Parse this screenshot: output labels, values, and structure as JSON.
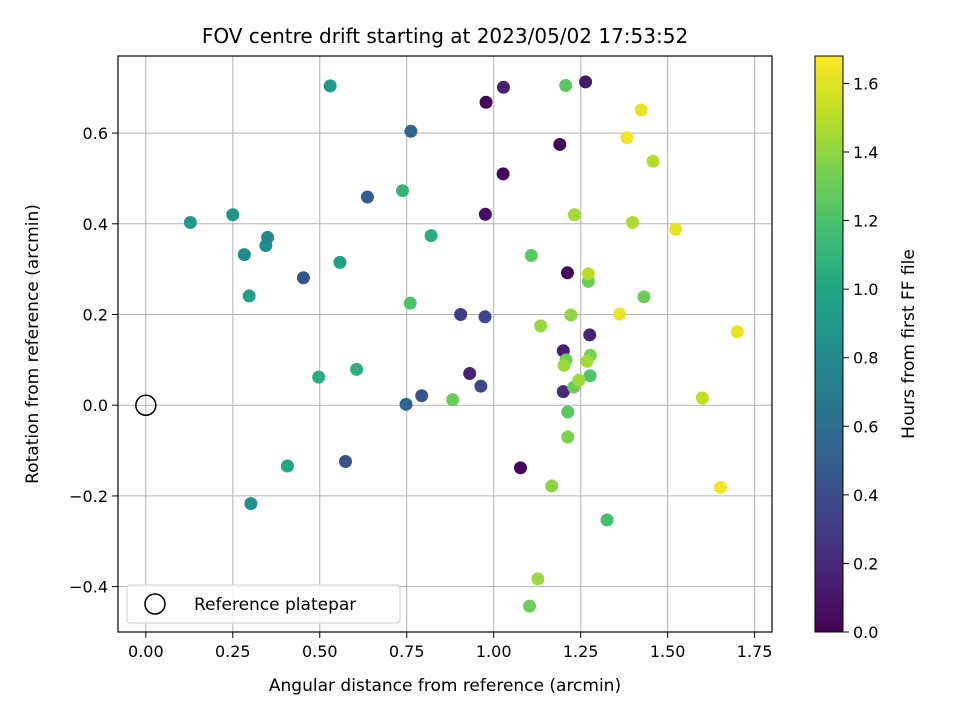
{
  "chart_data": {
    "type": "scatter",
    "title": "FOV centre drift starting at 2023/05/02 17:53:52",
    "xlabel": "Angular distance from reference (arcmin)",
    "ylabel": "Rotation from reference (arcmin)",
    "xlim": [
      -0.08,
      1.8
    ],
    "ylim": [
      -0.5,
      0.77
    ],
    "xticks": [
      0.0,
      0.25,
      0.5,
      0.75,
      1.0,
      1.25,
      1.5,
      1.75
    ],
    "xtick_labels": [
      "0.00",
      "0.25",
      "0.50",
      "0.75",
      "1.00",
      "1.25",
      "1.50",
      "1.75"
    ],
    "yticks": [
      -0.4,
      -0.2,
      0.0,
      0.2,
      0.4,
      0.6
    ],
    "ytick_labels": [
      "−0.4",
      "−0.2",
      "0.0",
      "0.2",
      "0.4",
      "0.6"
    ],
    "grid": true,
    "legend": {
      "placement": "lower-left",
      "entries": [
        {
          "label": "Reference platepar",
          "marker": "hollow-circle",
          "x": 0.0,
          "y": 0.0
        }
      ]
    },
    "colorbar": {
      "label": "Hours from first FF file",
      "range": [
        0.0,
        1.68
      ],
      "ticks": [
        0.0,
        0.2,
        0.4,
        0.6,
        0.8,
        1.0,
        1.2,
        1.4,
        1.6
      ],
      "tick_labels": [
        "0.0",
        "0.2",
        "0.4",
        "0.6",
        "0.8",
        "1.0",
        "1.2",
        "1.4",
        "1.6"
      ],
      "colormap": "viridis"
    },
    "points": [
      {
        "x": 0.978,
        "y": 0.668,
        "c": 0.02
      },
      {
        "x": 1.19,
        "y": 0.575,
        "c": 0.03
      },
      {
        "x": 0.976,
        "y": 0.421,
        "c": 0.05
      },
      {
        "x": 1.027,
        "y": 0.51,
        "c": 0.03
      },
      {
        "x": 1.212,
        "y": 0.292,
        "c": 0.04
      },
      {
        "x": 1.077,
        "y": -0.138,
        "c": 0.03
      },
      {
        "x": 1.264,
        "y": 0.713,
        "c": 0.12
      },
      {
        "x": 1.028,
        "y": 0.701,
        "c": 0.15
      },
      {
        "x": 1.276,
        "y": 0.155,
        "c": 0.18
      },
      {
        "x": 1.2,
        "y": 0.12,
        "c": 0.15
      },
      {
        "x": 0.931,
        "y": 0.07,
        "c": 0.18
      },
      {
        "x": 1.2,
        "y": 0.03,
        "c": 0.2
      },
      {
        "x": 0.905,
        "y": 0.2,
        "c": 0.3
      },
      {
        "x": 0.975,
        "y": 0.195,
        "c": 0.35
      },
      {
        "x": 0.963,
        "y": 0.042,
        "c": 0.38
      },
      {
        "x": 0.574,
        "y": -0.124,
        "c": 0.42
      },
      {
        "x": 0.793,
        "y": 0.021,
        "c": 0.45
      },
      {
        "x": 0.453,
        "y": 0.281,
        "c": 0.45
      },
      {
        "x": 0.637,
        "y": 0.459,
        "c": 0.5
      },
      {
        "x": 0.762,
        "y": 0.604,
        "c": 0.55
      },
      {
        "x": 0.748,
        "y": 0.002,
        "c": 0.55
      },
      {
        "x": 0.302,
        "y": -0.217,
        "c": 0.85
      },
      {
        "x": 0.345,
        "y": 0.352,
        "c": 0.82
      },
      {
        "x": 0.35,
        "y": 0.37,
        "c": 0.78
      },
      {
        "x": 0.283,
        "y": 0.332,
        "c": 0.8
      },
      {
        "x": 0.25,
        "y": 0.42,
        "c": 0.88
      },
      {
        "x": 0.128,
        "y": 0.403,
        "c": 0.9
      },
      {
        "x": 0.297,
        "y": 0.241,
        "c": 0.95
      },
      {
        "x": 0.407,
        "y": -0.134,
        "c": 1.0
      },
      {
        "x": 0.53,
        "y": 0.704,
        "c": 0.92
      },
      {
        "x": 0.558,
        "y": 0.315,
        "c": 0.95
      },
      {
        "x": 0.497,
        "y": 0.062,
        "c": 1.05
      },
      {
        "x": 0.606,
        "y": 0.079,
        "c": 1.07
      },
      {
        "x": 0.82,
        "y": 0.374,
        "c": 1.05
      },
      {
        "x": 0.738,
        "y": 0.473,
        "c": 1.12
      },
      {
        "x": 0.76,
        "y": 0.225,
        "c": 1.2
      },
      {
        "x": 0.882,
        "y": 0.012,
        "c": 1.3
      },
      {
        "x": 1.108,
        "y": 0.33,
        "c": 1.25
      },
      {
        "x": 1.326,
        "y": -0.253,
        "c": 1.18
      },
      {
        "x": 1.213,
        "y": -0.015,
        "c": 1.25
      },
      {
        "x": 1.277,
        "y": 0.065,
        "c": 1.22
      },
      {
        "x": 1.207,
        "y": 0.705,
        "c": 1.25
      },
      {
        "x": 1.272,
        "y": 0.273,
        "c": 1.3
      },
      {
        "x": 1.432,
        "y": 0.239,
        "c": 1.3
      },
      {
        "x": 1.23,
        "y": 0.04,
        "c": 1.3
      },
      {
        "x": 1.208,
        "y": 0.1,
        "c": 1.32
      },
      {
        "x": 1.278,
        "y": 0.11,
        "c": 1.33
      },
      {
        "x": 1.213,
        "y": -0.07,
        "c": 1.35
      },
      {
        "x": 1.167,
        "y": -0.178,
        "c": 1.38
      },
      {
        "x": 1.103,
        "y": -0.443,
        "c": 1.3
      },
      {
        "x": 1.127,
        "y": -0.383,
        "c": 1.43
      },
      {
        "x": 1.135,
        "y": 0.175,
        "c": 1.42
      },
      {
        "x": 1.222,
        "y": 0.199,
        "c": 1.4
      },
      {
        "x": 1.232,
        "y": 0.42,
        "c": 1.45
      },
      {
        "x": 1.245,
        "y": 0.055,
        "c": 1.43
      },
      {
        "x": 1.268,
        "y": 0.097,
        "c": 1.45
      },
      {
        "x": 1.202,
        "y": 0.088,
        "c": 1.42
      },
      {
        "x": 1.272,
        "y": 0.29,
        "c": 1.5
      },
      {
        "x": 1.399,
        "y": 0.403,
        "c": 1.47
      },
      {
        "x": 1.458,
        "y": 0.538,
        "c": 1.5
      },
      {
        "x": 1.6,
        "y": 0.016,
        "c": 1.52
      },
      {
        "x": 1.383,
        "y": 0.59,
        "c": 1.65
      },
      {
        "x": 1.424,
        "y": 0.651,
        "c": 1.62
      },
      {
        "x": 1.523,
        "y": 0.388,
        "c": 1.62
      },
      {
        "x": 1.362,
        "y": 0.201,
        "c": 1.63
      },
      {
        "x": 1.652,
        "y": -0.181,
        "c": 1.65
      },
      {
        "x": 1.7,
        "y": 0.162,
        "c": 1.63
      }
    ]
  }
}
